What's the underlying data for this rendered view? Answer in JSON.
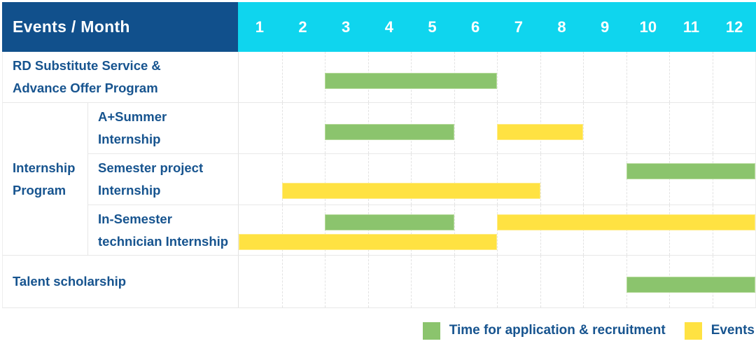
{
  "header": {
    "title": "Events / Month",
    "months": [
      "1",
      "2",
      "3",
      "4",
      "5",
      "6",
      "7",
      "8",
      "9",
      "10",
      "11",
      "12"
    ]
  },
  "colors": {
    "header_bg": "#11508C",
    "months_bg": "#0FD5EE",
    "header_text": "#FFFFFF",
    "label_text": "#17548F",
    "recruitment": "#8BC46D",
    "events": "#FFE242",
    "grid_line": "#E6E6E6"
  },
  "rows": [
    {
      "label": "RD Substitute Service &\nAdvance Offer Program"
    },
    {
      "group": "Internship\nProgram",
      "label": "A+Summer\nInternship"
    },
    {
      "label": "Semester project\nInternship"
    },
    {
      "label": "In-Semester\ntechnician Internship"
    },
    {
      "label": "Talent scholarship"
    }
  ],
  "legend": {
    "recruitment_label": "Time for application & recruitment",
    "events_label": "Events"
  },
  "chart_data": {
    "type": "gantt",
    "title": "Events / Month",
    "x_axis": {
      "unit": "month",
      "range": [
        1,
        12
      ],
      "ticks": [
        1,
        2,
        3,
        4,
        5,
        6,
        7,
        8,
        9,
        10,
        11,
        12
      ]
    },
    "legend_position": "bottom-right",
    "series": [
      {
        "key": "recruitment",
        "name": "Time for application & recruitment",
        "color": "#8BC46D"
      },
      {
        "key": "events",
        "name": "Events",
        "color": "#FFE242"
      }
    ],
    "rows": [
      {
        "group": "",
        "label": "RD Substitute Service & Advance Offer Program",
        "bars": [
          {
            "series": "recruitment",
            "start_month": 3,
            "end_month": 6,
            "lane": "mid"
          }
        ]
      },
      {
        "group": "Internship Program",
        "label": "A+Summer Internship",
        "bars": [
          {
            "series": "recruitment",
            "start_month": 3,
            "end_month": 5,
            "lane": "mid"
          },
          {
            "series": "events",
            "start_month": 7,
            "end_month": 8,
            "lane": "mid"
          }
        ]
      },
      {
        "group": "Internship Program",
        "label": "Semester project Internship",
        "bars": [
          {
            "series": "recruitment",
            "start_month": 10,
            "end_month": 12,
            "lane": "top"
          },
          {
            "series": "events",
            "start_month": 2,
            "end_month": 7,
            "lane": "bottom"
          }
        ]
      },
      {
        "group": "Internship Program",
        "label": "In-Semester technician Internship",
        "bars": [
          {
            "series": "recruitment",
            "start_month": 3,
            "end_month": 5,
            "lane": "top"
          },
          {
            "series": "events",
            "start_month": 7,
            "end_month": 12,
            "lane": "top"
          },
          {
            "series": "events",
            "start_month": 1,
            "end_month": 6,
            "lane": "bottom"
          }
        ]
      },
      {
        "group": "",
        "label": "Talent scholarship",
        "bars": [
          {
            "series": "recruitment",
            "start_month": 10,
            "end_month": 12,
            "lane": "mid"
          }
        ]
      }
    ]
  }
}
